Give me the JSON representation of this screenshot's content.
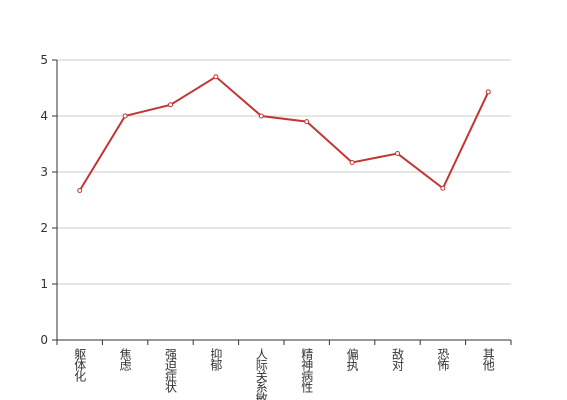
{
  "chart_data": {
    "type": "line",
    "categories": [
      "躯体化",
      "焦虑",
      "强迫症状",
      "抑郁",
      "人际关系敏感",
      "精神病性",
      "偏执",
      "敌对",
      "恐怖",
      "其他"
    ],
    "values": [
      2.67,
      4.0,
      4.2,
      4.7,
      4.0,
      3.9,
      3.17,
      3.33,
      2.71,
      4.43
    ],
    "color": "#c23531",
    "ylim": [
      0,
      5
    ],
    "yticks": [
      0,
      1,
      2,
      3,
      4,
      5
    ],
    "grid": true
  }
}
